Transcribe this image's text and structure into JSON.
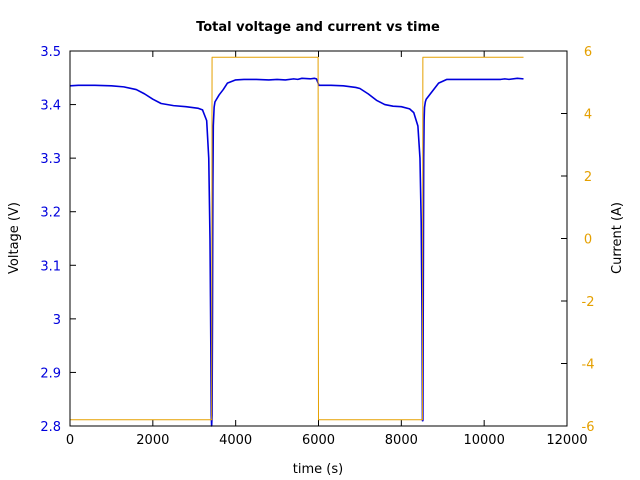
{
  "chart_data": {
    "type": "line",
    "title": "Total voltage and current vs time",
    "xlabel": "time (s)",
    "ylabel": "Voltage (V)",
    "y2label": "Current (A)",
    "xlim": [
      0,
      12000
    ],
    "ylim": [
      2.8,
      3.5
    ],
    "y2lim": [
      -6,
      6
    ],
    "xticks": [
      "0",
      "2000",
      "4000",
      "6000",
      "8000",
      "10000",
      "12000"
    ],
    "yticks": [
      "2.8",
      "2.9",
      "3",
      "3.1",
      "3.2",
      "3.3",
      "3.4",
      "3.5"
    ],
    "y2ticks": [
      "-6",
      "-4",
      "-2",
      "0",
      "2",
      "4",
      "6"
    ],
    "grid": false,
    "colors": {
      "voltage": "#0000dd",
      "current": "#e5a000",
      "left_axis_text": "#0000dd",
      "right_axis_text": "#e5a000"
    },
    "series": [
      {
        "axis": "left",
        "x": [
          0,
          200,
          600,
          1000,
          1300,
          1600,
          1800,
          2000,
          2200,
          2500,
          2800,
          3100,
          3200,
          3300,
          3350,
          3380,
          3400,
          3410,
          3420,
          3430,
          3440,
          3450,
          3460,
          3480,
          3500,
          3600,
          3700,
          3800,
          4000,
          4200,
          4500,
          4800,
          5000,
          5200,
          5400,
          5500,
          5600,
          5800,
          5900,
          5950,
          5990,
          6010,
          6100,
          6300,
          6600,
          6900,
          7000,
          7200,
          7400,
          7600,
          7800,
          8000,
          8200,
          8300,
          8400,
          8450,
          8480,
          8500,
          8510,
          8520,
          8530,
          8540,
          8550,
          8560,
          8580,
          8600,
          8700,
          8800,
          8900,
          9100,
          9300,
          9600,
          9900,
          10200,
          10400,
          10500,
          10600,
          10800,
          10950
        ],
        "y": [
          3.435,
          3.436,
          3.436,
          3.435,
          3.433,
          3.428,
          3.42,
          3.41,
          3.402,
          3.398,
          3.396,
          3.393,
          3.39,
          3.37,
          3.3,
          3.15,
          2.95,
          2.82,
          2.8,
          2.82,
          3.0,
          3.25,
          3.36,
          3.395,
          3.405,
          3.418,
          3.428,
          3.44,
          3.446,
          3.447,
          3.447,
          3.446,
          3.447,
          3.446,
          3.448,
          3.447,
          3.449,
          3.448,
          3.449,
          3.448,
          3.44,
          3.436,
          3.436,
          3.436,
          3.435,
          3.432,
          3.43,
          3.42,
          3.408,
          3.4,
          3.397,
          3.396,
          3.392,
          3.385,
          3.36,
          3.3,
          3.18,
          3.0,
          2.81,
          2.81,
          3.05,
          3.3,
          3.37,
          3.395,
          3.405,
          3.41,
          3.42,
          3.43,
          3.44,
          3.447,
          3.447,
          3.447,
          3.447,
          3.447,
          3.447,
          3.448,
          3.447,
          3.449,
          3.448
        ]
      },
      {
        "axis": "right",
        "x": [
          0,
          3420,
          3430,
          5990,
          6000,
          8510,
          8520,
          10950
        ],
        "y": [
          -5.8,
          -5.8,
          5.8,
          5.8,
          -5.8,
          -5.8,
          5.8,
          5.8
        ]
      }
    ]
  }
}
